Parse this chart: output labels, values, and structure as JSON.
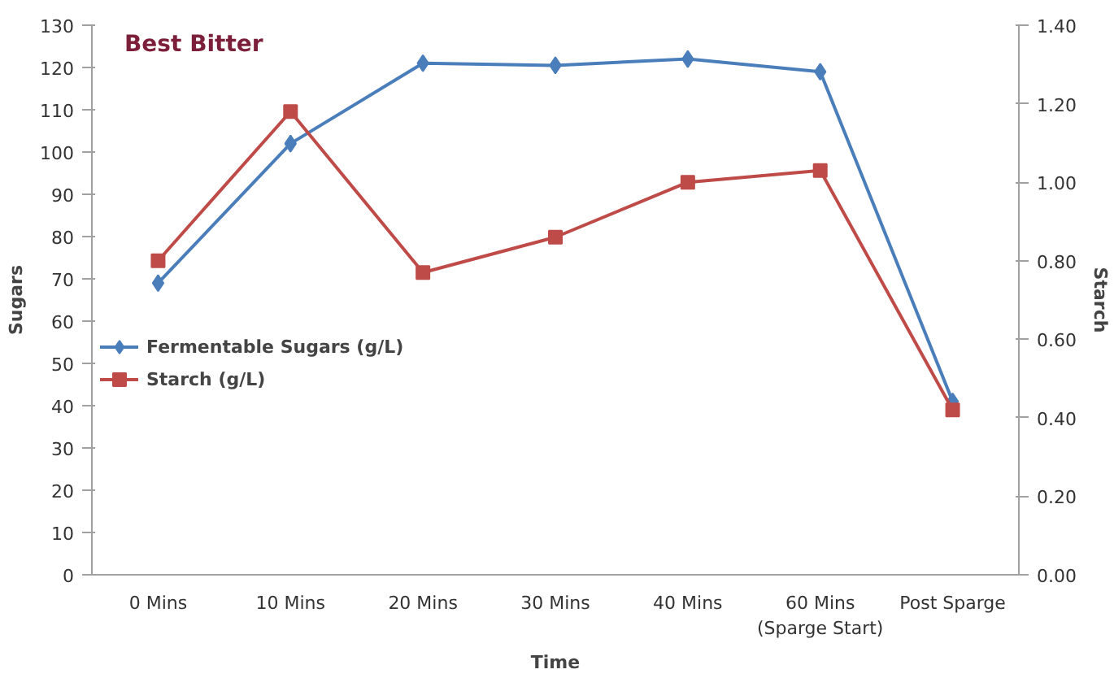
{
  "chart_data": {
    "type": "line",
    "title": "Best Bitter",
    "xlabel": "Time",
    "ylabel": "Sugars",
    "y2label": "Starch",
    "categories": [
      "0 Mins",
      "10 Mins",
      "20 Mins",
      "30 Mins",
      "40 Mins",
      "60 Mins\n(Sparge Start)",
      "Post Sparge"
    ],
    "series": [
      {
        "name": "Fermentable Sugars (g/L)",
        "color": "#4a7ebb",
        "marker": "diamond",
        "values": [
          69,
          102,
          121,
          120.5,
          122,
          119,
          41
        ]
      },
      {
        "name": "Starch (g/L)",
        "color": "#be4b48",
        "marker": "square",
        "axis": "y2",
        "values": [
          0.8,
          1.18,
          0.77,
          0.86,
          1.0,
          1.03,
          0.42
        ]
      }
    ],
    "ylim": [
      0,
      130
    ],
    "yticks": [
      0,
      10,
      20,
      30,
      40,
      50,
      60,
      70,
      80,
      90,
      100,
      110,
      120,
      130
    ],
    "y2lim": [
      0,
      1.4
    ],
    "y2ticks": [
      {
        "value": 0,
        "label": "0.00"
      },
      {
        "value": 0.2,
        "label": "0.20"
      },
      {
        "value": 0.4,
        "label": "0.40"
      },
      {
        "value": 0.6,
        "label": "0.60"
      },
      {
        "value": 0.8,
        "label": "0.80"
      },
      {
        "value": 1.0,
        "label": "1.00"
      },
      {
        "value": 1.2,
        "label": "1.20"
      },
      {
        "value": 1.4,
        "label": "1.40"
      }
    ],
    "grid": false,
    "legend": "left",
    "line_style": "solid"
  }
}
